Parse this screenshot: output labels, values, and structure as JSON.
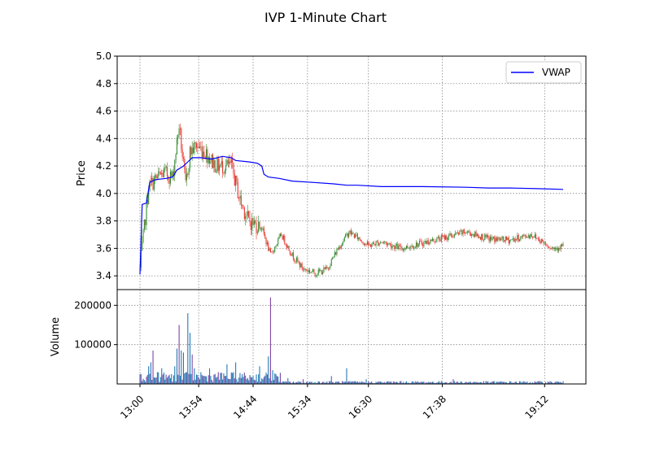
{
  "chart_data": {
    "type": "candlestick",
    "title": "IVP 1-Minute Chart",
    "x_tick_labels": [
      "13:00",
      "13:54",
      "14:44",
      "15:34",
      "16:30",
      "17:38",
      "19:12"
    ],
    "price_panel": {
      "ylabel": "Price",
      "ylim": [
        3.3,
        5.0
      ],
      "yticks": [
        3.4,
        3.6,
        3.8,
        4.0,
        4.2,
        4.4,
        4.6,
        4.8,
        5.0
      ],
      "ytick_labels": [
        "3.4",
        "3.6",
        "3.8",
        "4.0",
        "4.2",
        "4.4",
        "4.6",
        "4.8",
        "5.0"
      ],
      "grid": true,
      "legend": {
        "placement": "top-right",
        "entries": [
          {
            "label": "VWAP",
            "color": "#0000ff"
          }
        ]
      },
      "vwap": [
        [
          0,
          3.41
        ],
        [
          2,
          3.92
        ],
        [
          6,
          3.93
        ],
        [
          9,
          4.08
        ],
        [
          14,
          4.1
        ],
        [
          24,
          4.11
        ],
        [
          30,
          4.12
        ],
        [
          34,
          4.17
        ],
        [
          40,
          4.2
        ],
        [
          44,
          4.23
        ],
        [
          48,
          4.26
        ],
        [
          56,
          4.26
        ],
        [
          66,
          4.25
        ],
        [
          76,
          4.27
        ],
        [
          84,
          4.26
        ],
        [
          88,
          4.24
        ],
        [
          100,
          4.23
        ],
        [
          108,
          4.22
        ],
        [
          112,
          4.2
        ],
        [
          114,
          4.14
        ],
        [
          118,
          4.12
        ],
        [
          128,
          4.11
        ],
        [
          140,
          4.09
        ],
        [
          160,
          4.08
        ],
        [
          178,
          4.07
        ],
        [
          190,
          4.06
        ],
        [
          200,
          4.06
        ],
        [
          222,
          4.05
        ],
        [
          260,
          4.05
        ],
        [
          300,
          4.045
        ],
        [
          320,
          4.04
        ],
        [
          340,
          4.04
        ],
        [
          365,
          4.035
        ],
        [
          389,
          4.03
        ]
      ],
      "candles_keypoints": {
        "x": [
          0,
          8,
          14,
          22,
          30,
          36,
          42,
          46,
          52,
          60,
          70,
          84,
          92,
          100,
          112,
          120,
          130,
          140,
          150,
          162,
          172,
          182,
          192,
          200,
          210,
          222,
          240,
          260,
          280,
          300,
          320,
          340,
          360,
          380,
          389
        ],
        "close": [
          3.45,
          4.05,
          4.1,
          4.15,
          4.12,
          4.5,
          4.05,
          4.3,
          4.35,
          4.3,
          4.2,
          4.2,
          3.95,
          3.8,
          3.75,
          3.55,
          3.7,
          3.55,
          3.45,
          3.42,
          3.45,
          3.6,
          3.72,
          3.68,
          3.62,
          3.65,
          3.6,
          3.64,
          3.68,
          3.72,
          3.67,
          3.66,
          3.7,
          3.6,
          3.62
        ]
      }
    },
    "volume_panel": {
      "ylabel": "Volume",
      "ylim": [
        0,
        240000
      ],
      "yticks": [
        100000,
        200000
      ],
      "ytick_labels": [
        "100000",
        "200000"
      ],
      "grid": true,
      "spikes": [
        [
          4,
          10000
        ],
        [
          8,
          45000
        ],
        [
          10,
          55000
        ],
        [
          12,
          85000
        ],
        [
          16,
          30000
        ],
        [
          20,
          40000
        ],
        [
          26,
          20000
        ],
        [
          32,
          45000
        ],
        [
          34,
          90000
        ],
        [
          36,
          150000
        ],
        [
          38,
          85000
        ],
        [
          40,
          80000
        ],
        [
          44,
          180000
        ],
        [
          46,
          130000
        ],
        [
          48,
          75000
        ],
        [
          50,
          40000
        ],
        [
          56,
          30000
        ],
        [
          60,
          20000
        ],
        [
          64,
          40000
        ],
        [
          72,
          30000
        ],
        [
          80,
          50000
        ],
        [
          88,
          55000
        ],
        [
          94,
          25000
        ],
        [
          104,
          20000
        ],
        [
          110,
          45000
        ],
        [
          118,
          70000
        ],
        [
          120,
          220000
        ],
        [
          122,
          35000
        ],
        [
          126,
          20000
        ],
        [
          136,
          15000
        ],
        [
          150,
          12000
        ],
        [
          176,
          20000
        ],
        [
          190,
          40000
        ],
        [
          208,
          12000
        ],
        [
          288,
          12000
        ]
      ]
    },
    "series_count": 390
  }
}
